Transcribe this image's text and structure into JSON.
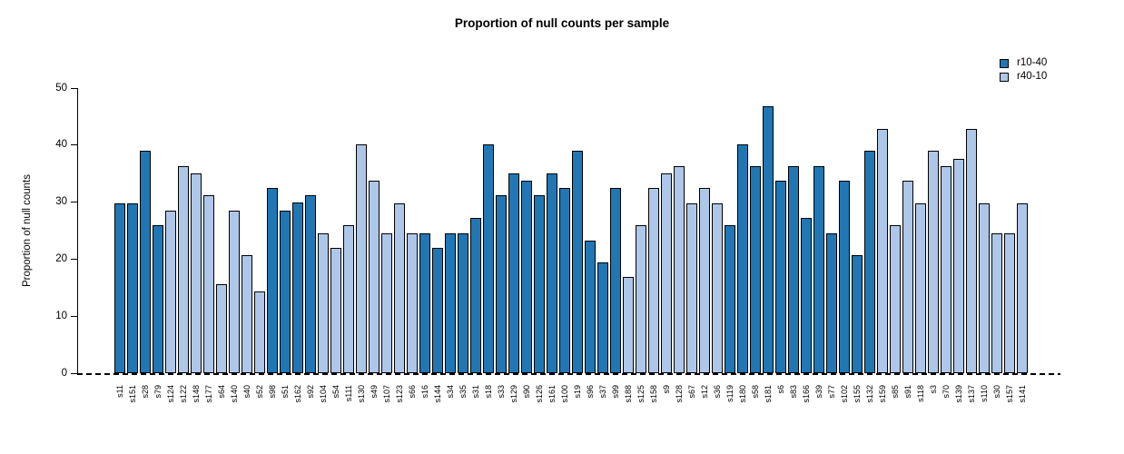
{
  "title": "Proportion of null counts per sample",
  "chart_data": {
    "type": "bar",
    "title": "Proportion of null counts per sample",
    "xlabel": "",
    "ylabel": "Proportion of null counts",
    "ylim": [
      0,
      50
    ],
    "y_ticks": [
      0,
      10,
      20,
      30,
      40,
      50
    ],
    "grid": false,
    "legend_position": "top-right",
    "zero_line_style": "dashed",
    "series": [
      {
        "name": "r10-40",
        "color": "#2077b4"
      },
      {
        "name": "r40-10",
        "color": "#aec7e8"
      }
    ],
    "bars": [
      {
        "sample": "s11",
        "group": "r10-40",
        "value": 29.8
      },
      {
        "sample": "s151",
        "group": "r10-40",
        "value": 29.8
      },
      {
        "sample": "s28",
        "group": "r10-40",
        "value": 39.0
      },
      {
        "sample": "s79",
        "group": "r10-40",
        "value": 26.0
      },
      {
        "sample": "s124",
        "group": "r40-10",
        "value": 28.5
      },
      {
        "sample": "s122",
        "group": "r40-10",
        "value": 36.4
      },
      {
        "sample": "s148",
        "group": "r40-10",
        "value": 35.0
      },
      {
        "sample": "s177",
        "group": "r40-10",
        "value": 31.2
      },
      {
        "sample": "s64",
        "group": "r40-10",
        "value": 15.6
      },
      {
        "sample": "s140",
        "group": "r40-10",
        "value": 28.5
      },
      {
        "sample": "s40",
        "group": "r40-10",
        "value": 20.8
      },
      {
        "sample": "s52",
        "group": "r40-10",
        "value": 14.4
      },
      {
        "sample": "s98",
        "group": "r10-40",
        "value": 32.5
      },
      {
        "sample": "s51",
        "group": "r10-40",
        "value": 28.5
      },
      {
        "sample": "s162",
        "group": "r10-40",
        "value": 30.0
      },
      {
        "sample": "s92",
        "group": "r10-40",
        "value": 31.2
      },
      {
        "sample": "s104",
        "group": "r40-10",
        "value": 24.5
      },
      {
        "sample": "s54",
        "group": "r40-10",
        "value": 22.0
      },
      {
        "sample": "s111",
        "group": "r40-10",
        "value": 26.0
      },
      {
        "sample": "s130",
        "group": "r40-10",
        "value": 40.2
      },
      {
        "sample": "s49",
        "group": "r40-10",
        "value": 33.8
      },
      {
        "sample": "s107",
        "group": "r40-10",
        "value": 24.5
      },
      {
        "sample": "s123",
        "group": "r40-10",
        "value": 29.8
      },
      {
        "sample": "s66",
        "group": "r40-10",
        "value": 24.5
      },
      {
        "sample": "s16",
        "group": "r10-40",
        "value": 24.5
      },
      {
        "sample": "s144",
        "group": "r10-40",
        "value": 22.0
      },
      {
        "sample": "s34",
        "group": "r10-40",
        "value": 24.5
      },
      {
        "sample": "s35",
        "group": "r10-40",
        "value": 24.5
      },
      {
        "sample": "s31",
        "group": "r10-40",
        "value": 27.3
      },
      {
        "sample": "s18",
        "group": "r10-40",
        "value": 40.2
      },
      {
        "sample": "s33",
        "group": "r10-40",
        "value": 31.2
      },
      {
        "sample": "s129",
        "group": "r10-40",
        "value": 35.0
      },
      {
        "sample": "s90",
        "group": "r10-40",
        "value": 33.8
      },
      {
        "sample": "s126",
        "group": "r10-40",
        "value": 31.2
      },
      {
        "sample": "s161",
        "group": "r10-40",
        "value": 35.0
      },
      {
        "sample": "s100",
        "group": "r10-40",
        "value": 32.5
      },
      {
        "sample": "s19",
        "group": "r10-40",
        "value": 39.0
      },
      {
        "sample": "s96",
        "group": "r10-40",
        "value": 23.3
      },
      {
        "sample": "s37",
        "group": "r10-40",
        "value": 19.5
      },
      {
        "sample": "s99",
        "group": "r10-40",
        "value": 32.5
      },
      {
        "sample": "s188",
        "group": "r40-10",
        "value": 16.9
      },
      {
        "sample": "s125",
        "group": "r40-10",
        "value": 26.0
      },
      {
        "sample": "s158",
        "group": "r40-10",
        "value": 32.5
      },
      {
        "sample": "s9",
        "group": "r40-10",
        "value": 35.0
      },
      {
        "sample": "s128",
        "group": "r40-10",
        "value": 36.4
      },
      {
        "sample": "s67",
        "group": "r40-10",
        "value": 29.8
      },
      {
        "sample": "s12",
        "group": "r40-10",
        "value": 32.5
      },
      {
        "sample": "s36",
        "group": "r40-10",
        "value": 29.8
      },
      {
        "sample": "s119",
        "group": "r10-40",
        "value": 26.0
      },
      {
        "sample": "s180",
        "group": "r10-40",
        "value": 40.2
      },
      {
        "sample": "s58",
        "group": "r10-40",
        "value": 36.4
      },
      {
        "sample": "s181",
        "group": "r10-40",
        "value": 46.8
      },
      {
        "sample": "s6",
        "group": "r10-40",
        "value": 33.8
      },
      {
        "sample": "s83",
        "group": "r10-40",
        "value": 36.4
      },
      {
        "sample": "s166",
        "group": "r10-40",
        "value": 27.3
      },
      {
        "sample": "s39",
        "group": "r10-40",
        "value": 36.4
      },
      {
        "sample": "s77",
        "group": "r10-40",
        "value": 24.5
      },
      {
        "sample": "s102",
        "group": "r10-40",
        "value": 33.8
      },
      {
        "sample": "s155",
        "group": "r10-40",
        "value": 20.8
      },
      {
        "sample": "s132",
        "group": "r10-40",
        "value": 39.0
      },
      {
        "sample": "s159",
        "group": "r40-10",
        "value": 42.8
      },
      {
        "sample": "s85",
        "group": "r40-10",
        "value": 26.0
      },
      {
        "sample": "s91",
        "group": "r40-10",
        "value": 33.8
      },
      {
        "sample": "s118",
        "group": "r40-10",
        "value": 29.8
      },
      {
        "sample": "s3",
        "group": "r40-10",
        "value": 39.0
      },
      {
        "sample": "s70",
        "group": "r40-10",
        "value": 36.4
      },
      {
        "sample": "s139",
        "group": "r40-10",
        "value": 37.6
      },
      {
        "sample": "s137",
        "group": "r40-10",
        "value": 42.8
      },
      {
        "sample": "s110",
        "group": "r40-10",
        "value": 29.8
      },
      {
        "sample": "s30",
        "group": "r40-10",
        "value": 24.5
      },
      {
        "sample": "s157",
        "group": "r40-10",
        "value": 24.5
      },
      {
        "sample": "s141",
        "group": "r40-10",
        "value": 29.8
      }
    ]
  }
}
